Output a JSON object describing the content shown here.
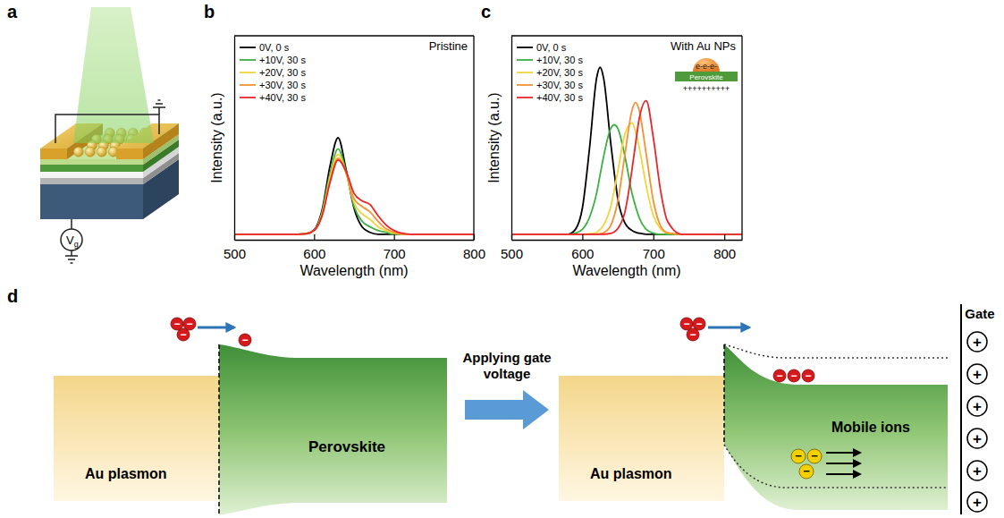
{
  "chart_data": [
    {
      "type": "line",
      "panel_label": "b",
      "title": "Pristine",
      "x_label": "Wavelength (nm)",
      "y_label": "Intensity (a.u.)",
      "x": [
        500,
        560,
        580,
        590,
        600,
        610,
        620,
        630,
        640,
        650,
        660,
        670,
        680,
        690,
        700,
        710,
        720,
        740,
        760,
        800
      ],
      "series": [
        {
          "name": "0V, 0 s",
          "color": "#000000",
          "values": [
            0.03,
            0.03,
            0.03,
            0.032,
            0.053,
            0.16,
            0.4,
            0.55,
            0.38,
            0.17,
            0.07,
            0.04,
            0.03,
            0.03,
            0.03,
            0.03,
            0.03,
            0.03,
            0.03,
            0.03
          ]
        },
        {
          "name": "+10V, 30 s",
          "color": "#3cb043",
          "values": [
            0.03,
            0.03,
            0.03,
            0.033,
            0.05,
            0.15,
            0.36,
            0.49,
            0.37,
            0.18,
            0.1,
            0.07,
            0.05,
            0.04,
            0.03,
            0.03,
            0.03,
            0.03,
            0.03,
            0.03
          ]
        },
        {
          "name": "+20V, 30 s",
          "color": "#f2d43c",
          "values": [
            0.03,
            0.03,
            0.03,
            0.033,
            0.05,
            0.14,
            0.34,
            0.46,
            0.36,
            0.2,
            0.14,
            0.11,
            0.07,
            0.05,
            0.035,
            0.03,
            0.03,
            0.03,
            0.03,
            0.03
          ]
        },
        {
          "name": "+30V, 30 s",
          "color": "#f39237",
          "values": [
            0.03,
            0.03,
            0.03,
            0.033,
            0.05,
            0.13,
            0.32,
            0.44,
            0.36,
            0.22,
            0.18,
            0.15,
            0.1,
            0.06,
            0.04,
            0.03,
            0.03,
            0.03,
            0.03,
            0.03
          ]
        },
        {
          "name": "+40V, 30 s",
          "color": "#e8262a",
          "values": [
            0.03,
            0.03,
            0.03,
            0.033,
            0.05,
            0.13,
            0.31,
            0.43,
            0.37,
            0.25,
            0.21,
            0.19,
            0.13,
            0.08,
            0.05,
            0.035,
            0.03,
            0.03,
            0.03,
            0.03
          ]
        }
      ],
      "xlim": [
        500,
        800
      ],
      "xticks": [
        500,
        600,
        700,
        800
      ],
      "ylim": [
        0,
        1.1
      ],
      "yticks": [],
      "tick_labels": "x",
      "legend": "upper left"
    },
    {
      "type": "line",
      "panel_label": "c",
      "title": "With Au NPs",
      "inset": {
        "electrons": "e-e-e-",
        "layer": "Perovskite",
        "charges": "++++++++++"
      },
      "x_label": "Wavelength (nm)",
      "y_label": "Intensity (a.u.)",
      "x": [
        500,
        560,
        580,
        590,
        600,
        610,
        620,
        625,
        630,
        640,
        645,
        650,
        660,
        670,
        675,
        680,
        690,
        700,
        710,
        720,
        740,
        760,
        800,
        825
      ],
      "series": [
        {
          "name": "0V, 0 s",
          "color": "#000000",
          "values": [
            0.03,
            0.03,
            0.03,
            0.055,
            0.17,
            0.49,
            0.87,
            0.93,
            0.87,
            0.52,
            0.36,
            0.22,
            0.09,
            0.05,
            0.04,
            0.035,
            0.03,
            0.03,
            0.03,
            0.03,
            0.03,
            0.03,
            0.03,
            0.03
          ]
        },
        {
          "name": "+10V, 30 s",
          "color": "#3cb043",
          "values": [
            0.03,
            0.03,
            0.03,
            0.036,
            0.056,
            0.12,
            0.25,
            0.35,
            0.45,
            0.6,
            0.62,
            0.6,
            0.45,
            0.25,
            0.18,
            0.12,
            0.056,
            0.036,
            0.03,
            0.03,
            0.03,
            0.03,
            0.03,
            0.03
          ]
        },
        {
          "name": "+20V, 30 s",
          "color": "#f2d43c",
          "values": [
            0.03,
            0.03,
            0.03,
            0.03,
            0.03,
            0.032,
            0.04,
            0.055,
            0.08,
            0.18,
            0.27,
            0.37,
            0.57,
            0.63,
            0.58,
            0.5,
            0.29,
            0.13,
            0.06,
            0.036,
            0.03,
            0.03,
            0.03,
            0.03
          ]
        },
        {
          "name": "+30V, 30 s",
          "color": "#f39237",
          "values": [
            0.03,
            0.03,
            0.03,
            0.03,
            0.03,
            0.03,
            0.03,
            0.033,
            0.038,
            0.077,
            0.13,
            0.21,
            0.46,
            0.7,
            0.74,
            0.7,
            0.46,
            0.21,
            0.077,
            0.038,
            0.03,
            0.03,
            0.03,
            0.03
          ]
        },
        {
          "name": "+40V, 30 s",
          "color": "#e8262a",
          "values": [
            0.03,
            0.03,
            0.03,
            0.03,
            0.03,
            0.03,
            0.03,
            0.03,
            0.03,
            0.034,
            0.042,
            0.06,
            0.15,
            0.38,
            0.52,
            0.65,
            0.75,
            0.55,
            0.27,
            0.1,
            0.03,
            0.03,
            0.03,
            0.03
          ]
        }
      ],
      "xlim": [
        500,
        825
      ],
      "xticks": [
        500,
        600,
        700,
        800
      ],
      "ylim": [
        0,
        1.1
      ],
      "yticks": [],
      "tick_labels": "x",
      "legend": "upper left"
    }
  ],
  "diagrams": {
    "a": {
      "panel_label": "a",
      "gate_voltage": "V",
      "gate_voltage_subscript": "g"
    },
    "d": {
      "panel_label": "d",
      "before": {
        "metal": "Au plasmon",
        "semiconductor": "Perovskite"
      },
      "transition": "Applying gate voltage",
      "after": {
        "metal": "Au plasmon",
        "ions": "Mobile ions",
        "gate": "Gate"
      },
      "electron_symbol": "−",
      "ion_symbol": "−",
      "gate_charge_symbol": "+"
    }
  }
}
